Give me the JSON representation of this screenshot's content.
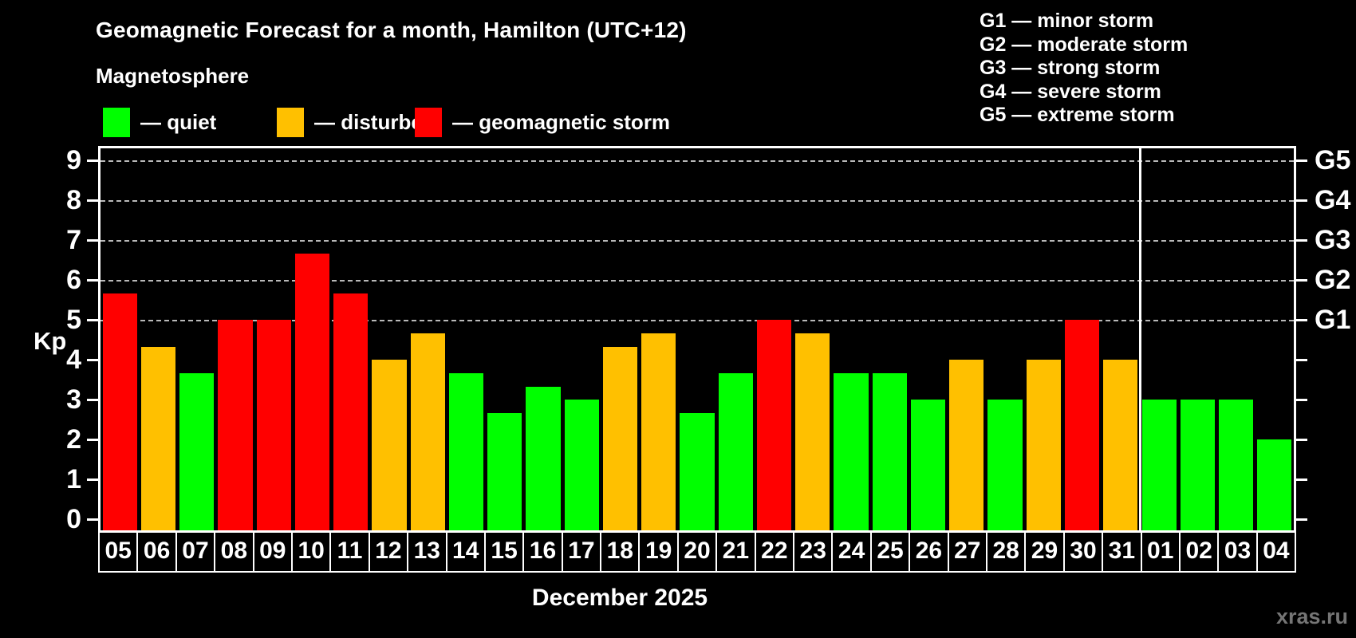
{
  "title": "Geomagnetic Forecast for a month, Hamilton (UTC+12)",
  "subtitle": "Magnetosphere",
  "legend": {
    "items": [
      {
        "label": "— quiet",
        "status": "quiet"
      },
      {
        "label": "— disturbed",
        "status": "disturbed"
      },
      {
        "label": "— geomagnetic storm",
        "status": "storm"
      }
    ]
  },
  "g_legend": [
    "G1 — minor storm",
    "G2 — moderate storm",
    "G3 — strong storm",
    "G4 — severe storm",
    "G5 — extreme storm"
  ],
  "axis": {
    "kp_label": "Kp",
    "y_ticks": [
      0,
      1,
      2,
      3,
      4,
      5,
      6,
      7,
      8,
      9
    ],
    "g_labels": [
      {
        "label": "G1",
        "kp": 5
      },
      {
        "label": "G2",
        "kp": 6
      },
      {
        "label": "G3",
        "kp": 7
      },
      {
        "label": "G4",
        "kp": 8
      },
      {
        "label": "G5",
        "kp": 9
      }
    ]
  },
  "x_axis_label": "December 2025",
  "watermark": "xras.ru",
  "chart_data": {
    "type": "bar",
    "title": "Geomagnetic Forecast for a month, Hamilton (UTC+12)",
    "ylabel": "Kp",
    "ylim": [
      0,
      9
    ],
    "grid_levels_kp": [
      5,
      6,
      7,
      8,
      9
    ],
    "categories": [
      "05",
      "06",
      "07",
      "08",
      "09",
      "10",
      "11",
      "12",
      "13",
      "14",
      "15",
      "16",
      "17",
      "18",
      "19",
      "20",
      "21",
      "22",
      "23",
      "24",
      "25",
      "26",
      "27",
      "28",
      "29",
      "30",
      "31",
      "01",
      "02",
      "03",
      "04"
    ],
    "values": [
      5.67,
      4.33,
      3.67,
      5,
      5,
      6.67,
      5.67,
      4,
      4.67,
      3.67,
      2.67,
      3.33,
      3,
      4.33,
      4.67,
      2.67,
      3.67,
      5,
      4.67,
      3.67,
      3.67,
      3,
      4,
      3,
      4,
      5,
      4,
      3,
      3,
      3,
      2
    ],
    "statuses": [
      "storm",
      "disturbed",
      "quiet",
      "storm",
      "storm",
      "storm",
      "storm",
      "disturbed",
      "disturbed",
      "quiet",
      "quiet",
      "quiet",
      "quiet",
      "disturbed",
      "disturbed",
      "quiet",
      "quiet",
      "storm",
      "disturbed",
      "quiet",
      "quiet",
      "quiet",
      "disturbed",
      "quiet",
      "disturbed",
      "storm",
      "disturbed",
      "quiet",
      "quiet",
      "quiet",
      "quiet"
    ],
    "separator_after_index": 26,
    "colors": {
      "quiet": "#00ff00",
      "disturbed": "#ffc000",
      "storm": "#ff0000",
      "background": "#000000",
      "text": "#ffffff",
      "grid": "#b9b9b9"
    }
  }
}
